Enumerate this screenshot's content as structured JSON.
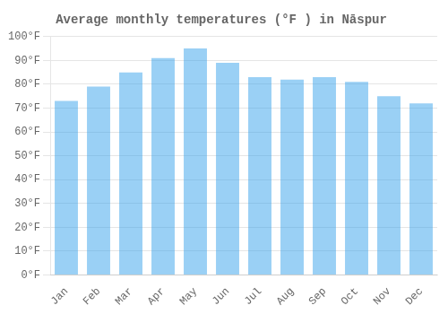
{
  "chart_data": {
    "type": "bar",
    "title": "Average monthly temperatures (°F ) in Nāspur",
    "categories": [
      "Jan",
      "Feb",
      "Mar",
      "Apr",
      "May",
      "Jun",
      "Jul",
      "Aug",
      "Sep",
      "Oct",
      "Nov",
      "Dec"
    ],
    "values": [
      73,
      79,
      85,
      91,
      95,
      89,
      83,
      82,
      83,
      81,
      75,
      72
    ],
    "ylim": [
      0,
      100
    ],
    "yticks": [
      {
        "value": 0,
        "label": "0°F"
      },
      {
        "value": 10,
        "label": "10°F"
      },
      {
        "value": 20,
        "label": "20°F"
      },
      {
        "value": 30,
        "label": "30°F"
      },
      {
        "value": 40,
        "label": "40°F"
      },
      {
        "value": 50,
        "label": "50°F"
      },
      {
        "value": 60,
        "label": "60°F"
      },
      {
        "value": 70,
        "label": "70°F"
      },
      {
        "value": 80,
        "label": "80°F"
      },
      {
        "value": 90,
        "label": "90°F"
      },
      {
        "value": 100,
        "label": "100°F"
      }
    ],
    "grid": true
  }
}
